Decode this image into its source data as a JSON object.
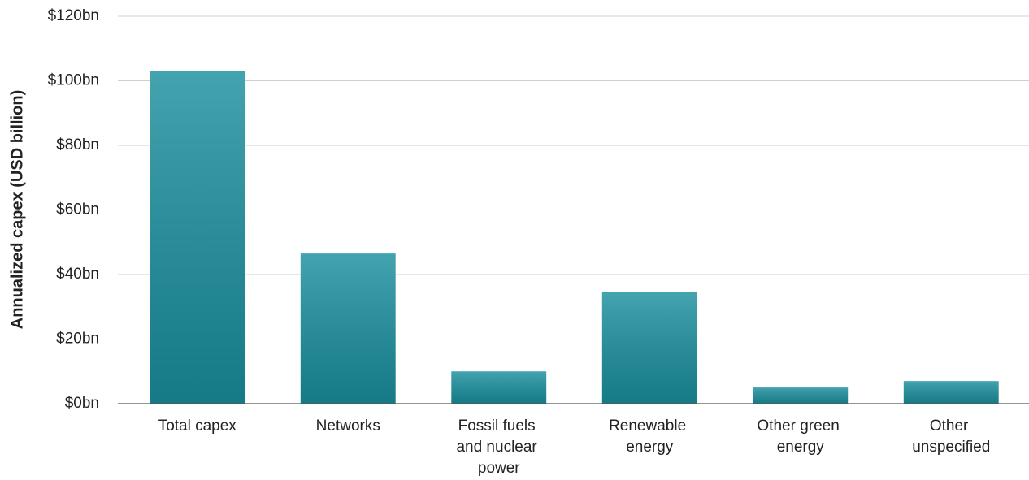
{
  "chart_data": {
    "type": "bar",
    "y_label": "Annualized capex (USD billion)",
    "categories": [
      "Total capex",
      "Networks",
      "Fossil fuels and nuclear power",
      "Renewable energy",
      "Other green energy",
      "Other unspecified"
    ],
    "values": [
      103,
      46.5,
      10,
      34.5,
      5,
      7
    ],
    "color": "#1a8f9e",
    "ylim": [
      0,
      120
    ],
    "yticks": [
      {
        "value": 0,
        "label": "$0bn"
      },
      {
        "value": 20,
        "label": "$20bn"
      },
      {
        "value": 40,
        "label": "$40bn"
      },
      {
        "value": 60,
        "label": "$60bn"
      },
      {
        "value": 80,
        "label": "$80bn"
      },
      {
        "value": 100,
        "label": "$100bn"
      },
      {
        "value": 120,
        "label": "$120bn"
      }
    ],
    "grid": true
  }
}
